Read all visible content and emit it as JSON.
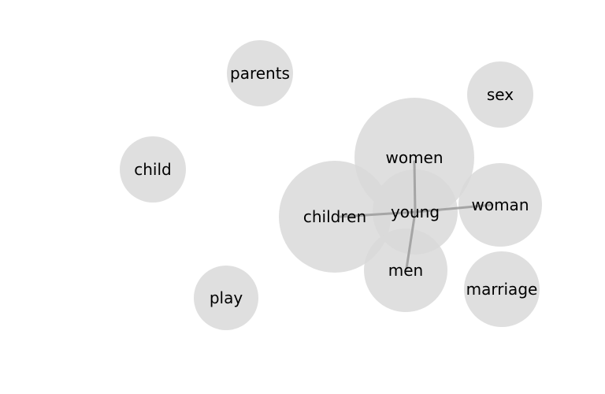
{
  "colors": {
    "background": "#ffffff",
    "node_fill": "#d9d9d9",
    "edge": "#9e9e9e",
    "label": "#000000"
  },
  "diagram": {
    "center": "young",
    "nodes": [
      {
        "id": "parents",
        "label": "parents"
      },
      {
        "id": "sex",
        "label": "sex"
      },
      {
        "id": "child",
        "label": "child"
      },
      {
        "id": "women",
        "label": "women"
      },
      {
        "id": "children",
        "label": "children"
      },
      {
        "id": "woman",
        "label": "woman"
      },
      {
        "id": "young",
        "label": "young"
      },
      {
        "id": "men",
        "label": "men"
      },
      {
        "id": "marriage",
        "label": "marriage"
      },
      {
        "id": "play",
        "label": "play"
      }
    ],
    "edges": [
      {
        "from": "young",
        "to": "women"
      },
      {
        "from": "young",
        "to": "children"
      },
      {
        "from": "young",
        "to": "woman"
      },
      {
        "from": "young",
        "to": "men"
      }
    ]
  }
}
